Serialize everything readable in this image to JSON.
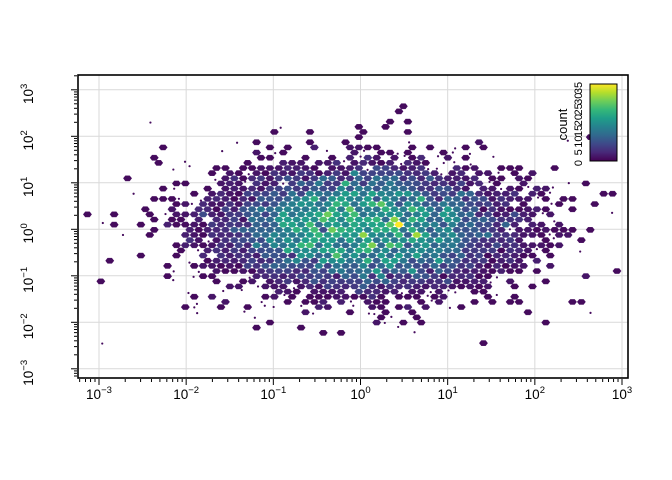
{
  "page": {
    "background": "#ffffff"
  },
  "chart_data": {
    "type": "hexbin",
    "title": "",
    "xlabel": "",
    "ylabel": "",
    "x_scale": "log10",
    "y_scale": "log10",
    "x_tick_exponents": [
      -3,
      -2,
      -1,
      0,
      1,
      2,
      3
    ],
    "y_tick_exponents": [
      -3,
      -2,
      -1,
      0,
      1,
      2,
      3
    ],
    "x_range_decades": [
      -3.24,
      3.07
    ],
    "y_range_decades": [
      -3.22,
      3.32
    ],
    "grid": true,
    "grid_color": "#d9d9d9",
    "frame_color": "#000000",
    "legend": {
      "title": "count",
      "position": "top-right-inside",
      "ticks": [
        0,
        5,
        10,
        15,
        20,
        25,
        30,
        35
      ],
      "min": 0,
      "max": 35,
      "colormap": "viridis"
    },
    "colormap_stops": [
      "#440154",
      "#482878",
      "#3e4989",
      "#31688e",
      "#26828e",
      "#1f9e89",
      "#35b779",
      "#6dcd59",
      "#b4de2c",
      "#fde725"
    ],
    "bins": {
      "x_width_decades": 0.102,
      "y_row_decades": 0.111
    },
    "distribution": {
      "kind": "bivariate-lognormal-hexbin",
      "center_decades": [
        0.03,
        0.02
      ],
      "sigma_decades": [
        1.13,
        0.88
      ],
      "profile_exponent": 3,
      "peak_cell_count": 20,
      "tail_mix": 0.03,
      "tail_sigma_scale": 1.6,
      "max_count": 35,
      "single_count_dot_fraction": 0.3,
      "seed": 7,
      "hotspots": [
        {
          "x_decades": 0.4,
          "y_decades": 0.11,
          "count": 35
        },
        {
          "x_decades": 0.05,
          "y_decades": -0.17,
          "count": 29
        }
      ]
    }
  }
}
